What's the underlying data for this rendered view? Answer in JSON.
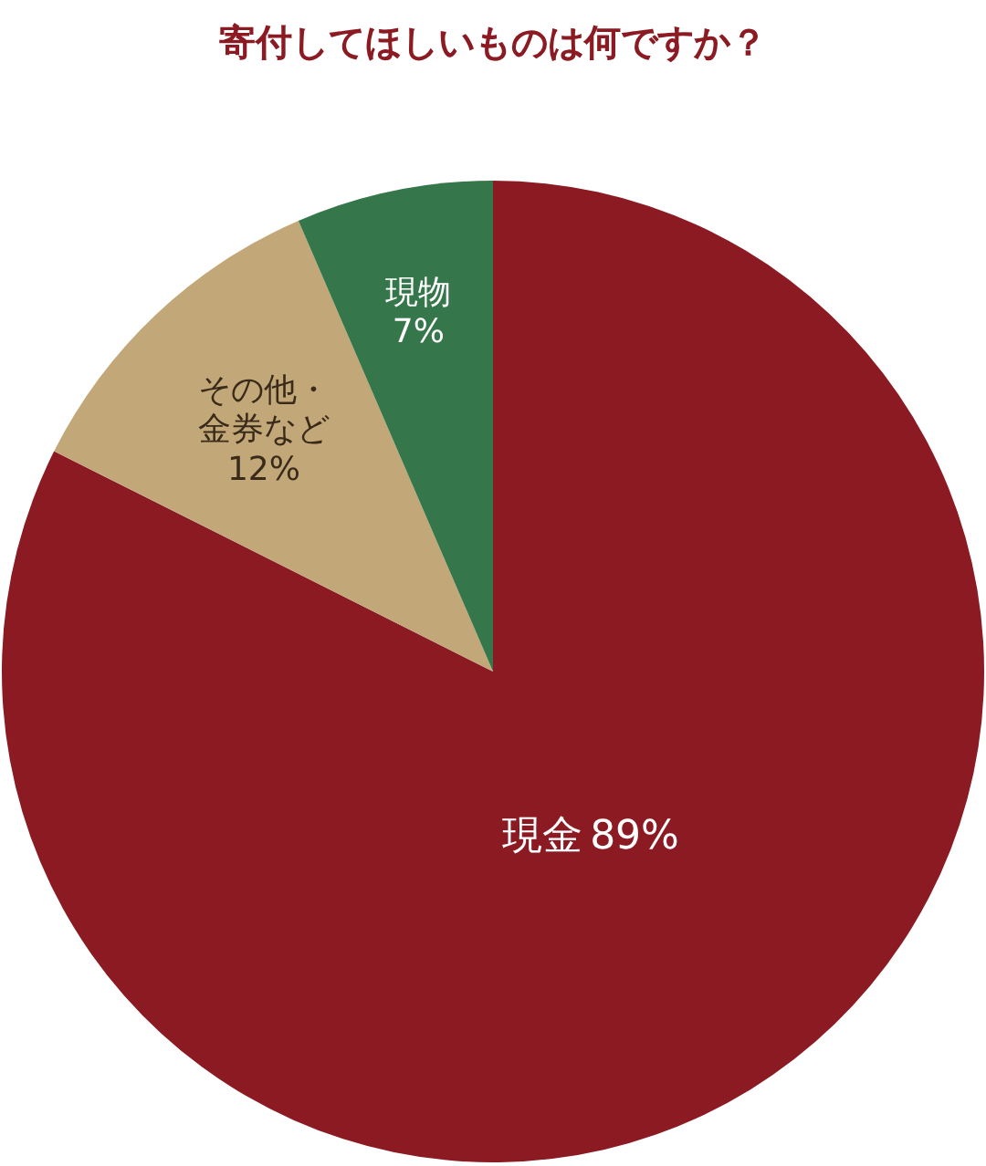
{
  "chart_data": {
    "type": "pie",
    "title": "寄付してほしいものは何ですか？",
    "categories": [
      "現金",
      "その他・金券など",
      "現物"
    ],
    "value_labels": [
      "89%",
      "12%",
      "7%"
    ],
    "values": [
      89,
      12,
      7
    ],
    "colors": [
      "#8b1a22",
      "#c2a878",
      "#35774a"
    ]
  }
}
